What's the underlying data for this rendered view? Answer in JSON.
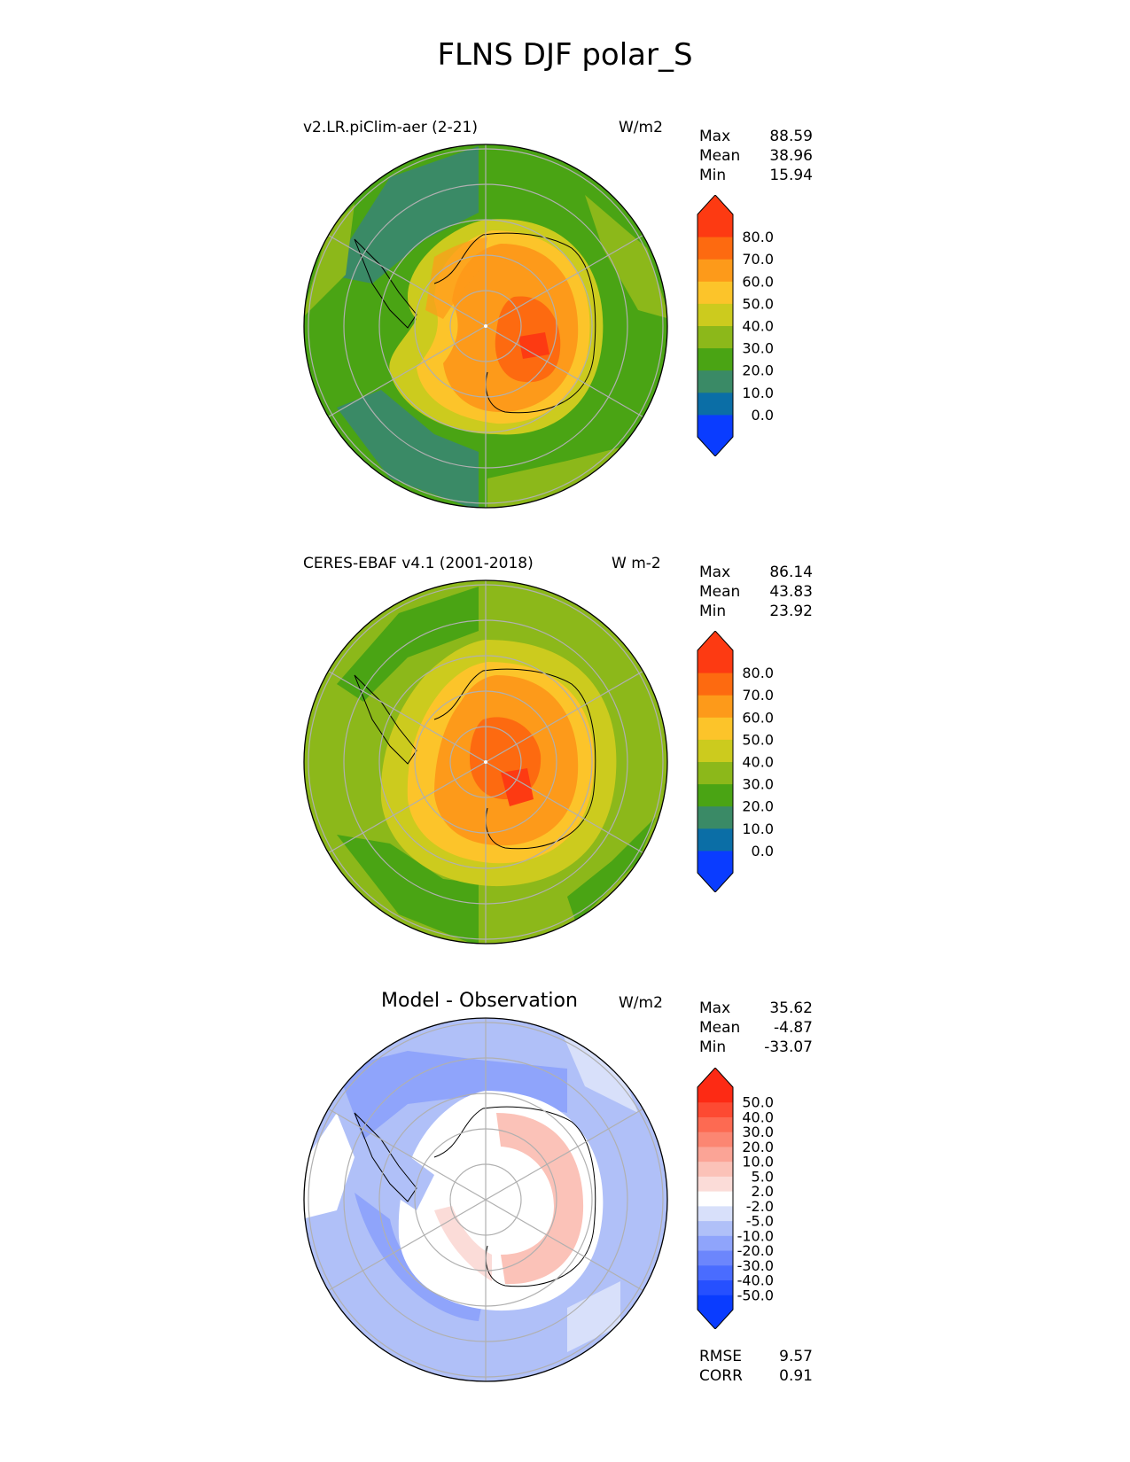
{
  "title": "FLNS DJF polar_S",
  "panels": [
    {
      "id": "test",
      "title": "v2.LR.piClim-aer (2-21)",
      "units": "W/m2",
      "stats": [
        {
          "label": "Max",
          "value": "88.59"
        },
        {
          "label": "Mean",
          "value": "38.96"
        },
        {
          "label": "Min",
          "value": "15.94"
        }
      ],
      "colorbar": {
        "colors": [
          "#0a3cff",
          "#0b6ea6",
          "#3a8a66",
          "#4aa414",
          "#8cb81a",
          "#cccb1e",
          "#fcc42a",
          "#fd9a1a",
          "#fd6a10",
          "#fd3a12"
        ],
        "tick_labels": [
          "80.0",
          "70.0",
          "60.0",
          "50.0",
          "40.0",
          "30.0",
          "20.0",
          "10.0",
          "0.0"
        ]
      }
    },
    {
      "id": "ref",
      "title": "CERES-EBAF v4.1 (2001-2018)",
      "units": "W m-2",
      "stats": [
        {
          "label": "Max",
          "value": "86.14"
        },
        {
          "label": "Mean",
          "value": "43.83"
        },
        {
          "label": "Min",
          "value": "23.92"
        }
      ],
      "colorbar": {
        "colors": [
          "#0a3cff",
          "#0b6ea6",
          "#3a8a66",
          "#4aa414",
          "#8cb81a",
          "#cccb1e",
          "#fcc42a",
          "#fd9a1a",
          "#fd6a10",
          "#fd3a12"
        ],
        "tick_labels": [
          "80.0",
          "70.0",
          "60.0",
          "50.0",
          "40.0",
          "30.0",
          "20.0",
          "10.0",
          "0.0"
        ]
      }
    },
    {
      "id": "diff",
      "title": "Model - Observation",
      "units": "W/m2",
      "stats": [
        {
          "label": "Max",
          "value": "35.62"
        },
        {
          "label": "Mean",
          "value": "-4.87"
        },
        {
          "label": "Min",
          "value": "-33.07"
        }
      ],
      "colorbar": {
        "colors": [
          "#0a3cff",
          "#2650ff",
          "#4a6cff",
          "#6c86fc",
          "#8fa4fb",
          "#b0c0f8",
          "#d8e0fa",
          "#ffffff",
          "#fbdcd8",
          "#fbc2b8",
          "#fba496",
          "#fc8672",
          "#fd6a52",
          "#fd4a32",
          "#fd2a14"
        ],
        "tick_labels": [
          "50.0",
          "40.0",
          "30.0",
          "20.0",
          "10.0",
          "5.0",
          "2.0",
          "-2.0",
          "-5.0",
          "-10.0",
          "-20.0",
          "-30.0",
          "-40.0",
          "-50.0"
        ]
      },
      "metrics": [
        {
          "label": "RMSE",
          "value": "9.57"
        },
        {
          "label": "CORR",
          "value": "0.91"
        }
      ]
    }
  ]
}
